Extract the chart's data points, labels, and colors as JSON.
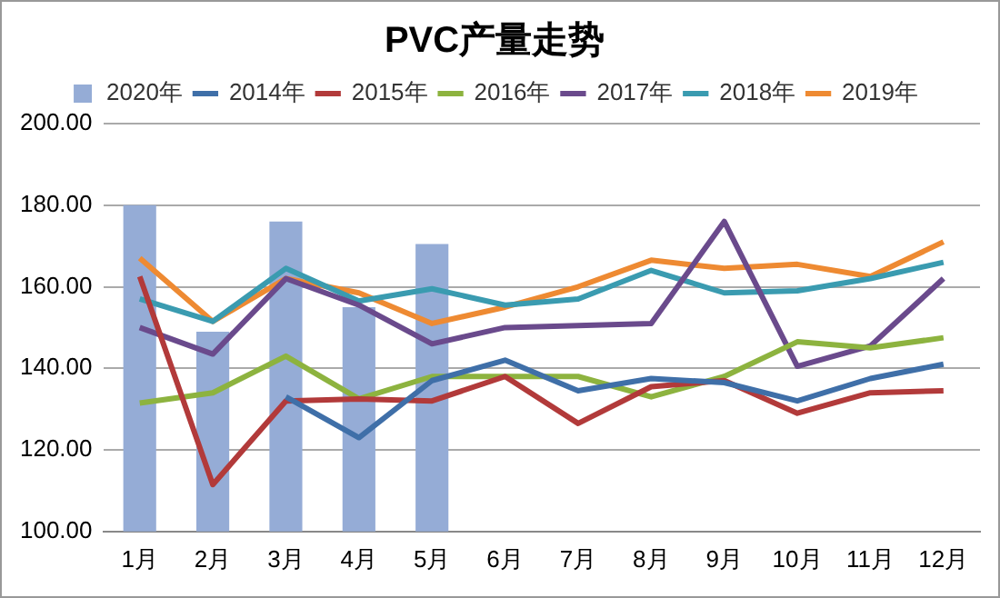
{
  "chart_data": {
    "type": "bar",
    "title": "PVC产量走势",
    "categories": [
      "1月",
      "2月",
      "3月",
      "4月",
      "5月",
      "6月",
      "7月",
      "8月",
      "9月",
      "10月",
      "11月",
      "12月"
    ],
    "series": [
      {
        "name": "2020年",
        "color": "#95acd6",
        "values": [
          180,
          149,
          176,
          155,
          170.5,
          null,
          null,
          null,
          null,
          null,
          null,
          null
        ]
      },
      {
        "name": "2014年",
        "type": "line",
        "color": "#3f6fa8",
        "values": [
          null,
          null,
          133,
          123,
          137,
          142,
          134.5,
          137.5,
          136.5,
          132,
          137.5,
          141
        ]
      },
      {
        "name": "2015年",
        "type": "line",
        "color": "#b23a3a",
        "values": [
          162.5,
          111.5,
          132,
          132.5,
          132,
          138,
          126.5,
          135.5,
          137,
          129,
          134,
          134.5
        ]
      },
      {
        "name": "2016年",
        "type": "line",
        "color": "#8db33f",
        "values": [
          131.5,
          134,
          143,
          132.5,
          138,
          138,
          138,
          133,
          138,
          146.5,
          145,
          147.5
        ]
      },
      {
        "name": "2017年",
        "type": "line",
        "color": "#6a4a8c",
        "values": [
          150,
          143.5,
          162,
          155.5,
          146,
          150,
          150.5,
          151,
          176,
          140.5,
          145.5,
          162
        ]
      },
      {
        "name": "2018年",
        "type": "line",
        "color": "#3a9bb0",
        "values": [
          157,
          151.5,
          164.5,
          156.5,
          159.5,
          155.5,
          157,
          164,
          158.5,
          159,
          162,
          166
        ]
      },
      {
        "name": "2019年",
        "type": "line",
        "color": "#ee8a32",
        "values": [
          167,
          151.5,
          162,
          158.5,
          151,
          155,
          160,
          166.5,
          164.5,
          165.5,
          162.5,
          171
        ]
      }
    ],
    "ylim": [
      100,
      200
    ],
    "yticks": [
      {
        "value": 100,
        "label": "100.00"
      },
      {
        "value": 120,
        "label": "120.00"
      },
      {
        "value": 140,
        "label": "140.00"
      },
      {
        "value": 160,
        "label": "160.00"
      },
      {
        "value": 180,
        "label": "180.00"
      },
      {
        "value": 200,
        "label": "200.00"
      }
    ],
    "grid": "y",
    "legend": "top",
    "marker": "none"
  }
}
